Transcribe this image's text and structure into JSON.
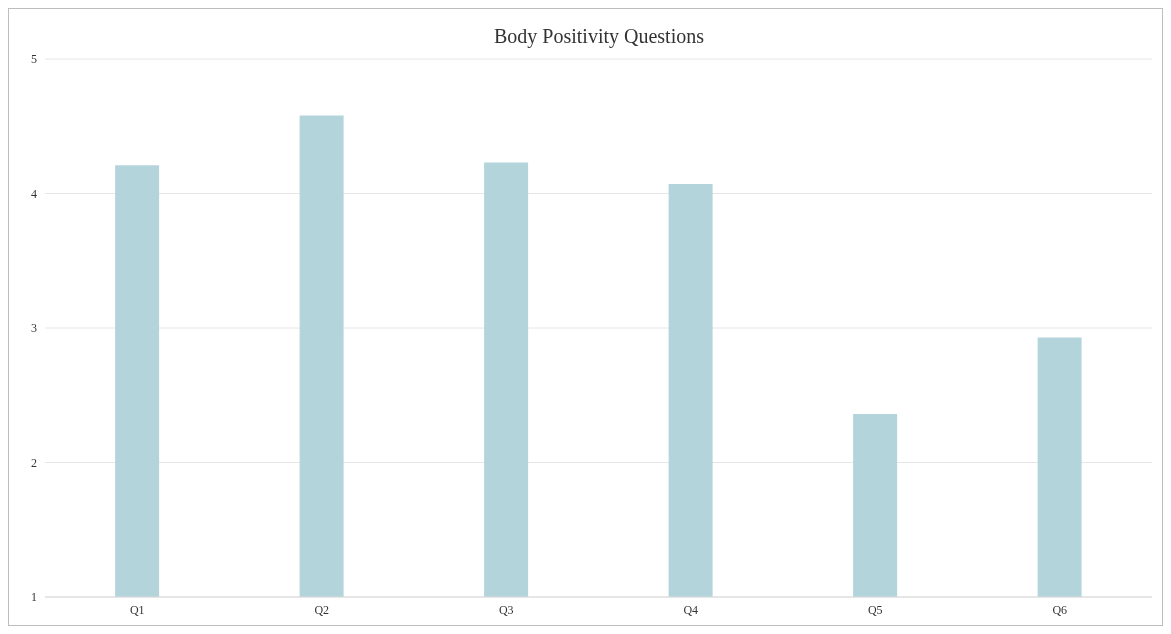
{
  "chart_data": {
    "type": "bar",
    "title": "Body Positivity Questions",
    "categories": [
      "Q1",
      "Q2",
      "Q3",
      "Q4",
      "Q5",
      "Q6"
    ],
    "values": [
      4.21,
      4.58,
      4.23,
      4.07,
      2.36,
      2.93
    ],
    "color": "#b4d4dc",
    "ylim": [
      1,
      5
    ],
    "yticks": [
      1,
      2,
      3,
      4,
      5
    ],
    "grid": "y"
  }
}
